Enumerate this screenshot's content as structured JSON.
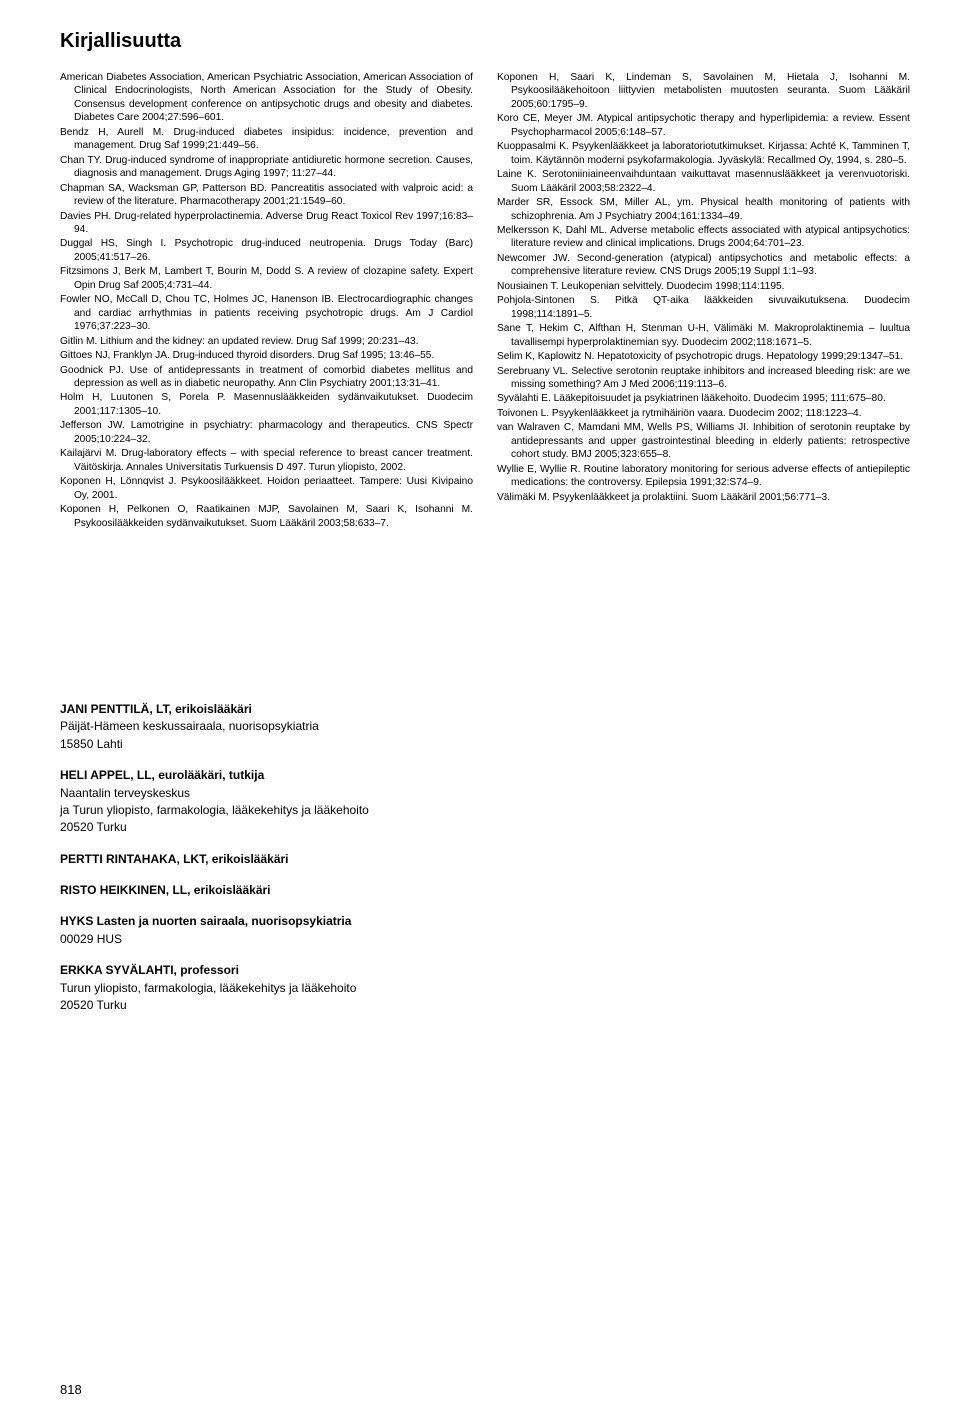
{
  "title": "Kirjallisuutta",
  "refs_left": [
    "American Diabetes Association, American Psychiatric Association, American Association of Clinical Endocrinologists, North American Association for the Study of Obesity. Consensus development conference on antipsychotic drugs and obesity and diabetes. Diabetes Care 2004;27:596–601.",
    "Bendz H, Aurell M. Drug-induced diabetes insipidus: incidence, prevention and management. Drug Saf 1999;21:449–56.",
    "Chan TY. Drug-induced syndrome of inappropriate antidiuretic hormone secretion. Causes, diagnosis and management. Drugs Aging 1997; 11:27–44.",
    "Chapman SA, Wacksman GP, Patterson BD. Pancreatitis associated with valproic acid: a review of the literature. Pharmacotherapy 2001;21:1549–60.",
    "Davies PH. Drug-related hyperprolactinemia. Adverse Drug React Toxicol Rev 1997;16:83–94.",
    "Duggal HS, Singh I. Psychotropic drug-induced neutropenia. Drugs Today (Barc) 2005;41:517–26.",
    "Fitzsimons J, Berk M, Lambert T, Bourin M, Dodd S. A review of clozapine safety. Expert Opin Drug Saf 2005;4:731–44.",
    "Fowler NO, McCall D, Chou TC, Holmes JC, Hanenson IB. Electrocardiographic changes and cardiac arrhythmias in patients receiving psychotropic drugs. Am J Cardiol 1976;37:223–30.",
    "Gitlin M. Lithium and the kidney: an updated review. Drug Saf 1999; 20:231–43.",
    "Gittoes NJ, Franklyn JA. Drug-induced thyroid disorders. Drug Saf 1995; 13:46–55.",
    "Goodnick PJ. Use of antidepressants in treatment of comorbid diabetes mellitus and depression as well as in diabetic neuropathy. Ann Clin Psychiatry 2001;13:31–41.",
    "Holm H, Luutonen S, Porela P. Masennuslääkkeiden sydänvaikutukset. Duodecim 2001;117:1305–10.",
    "Jefferson JW. Lamotrigine in psychiatry: pharmacology and therapeutics. CNS Spectr 2005;10:224–32.",
    "Kailajärvi M. Drug-laboratory effects – with special reference to breast cancer treatment. Väitöskirja. Annales Universitatis Turkuensis D 497. Turun yliopisto, 2002.",
    "Koponen H, Lönnqvist J. Psykoosilääkkeet. Hoidon periaatteet. Tampere: Uusi Kivipaino Oy, 2001.",
    "Koponen H, Pelkonen O, Raatikainen MJP, Savolainen M, Saari K, Isohanni M. Psykoosilääkkeiden sydänvaikutukset. Suom Lääkäril 2003;58:633–7."
  ],
  "refs_right": [
    "Koponen H, Saari K, Lindeman S, Savolainen M, Hietala J, Isohanni M. Psykoosilääkehoitoon liittyvien metabolisten muutosten seuranta. Suom Lääkäril 2005;60:1795–9.",
    "Koro CE, Meyer JM. Atypical antipsychotic therapy and hyperlipidemia: a review. Essent Psychopharmacol 2005;6:148–57.",
    "Kuoppasalmi K. Psyykenlääkkeet ja laboratoriotutkimukset. Kirjassa: Achté K, Tamminen T, toim. Käytännön moderni psykofarmakologia. Jyväskylä: Recallmed Oy, 1994, s. 280–5.",
    "Laine K. Serotoniiniaineenvaihduntaan vaikuttavat masennuslääkkeet ja verenvuotoriski. Suom Lääkäril 2003;58:2322–4.",
    "Marder SR, Essock SM, Miller AL, ym. Physical health monitoring of patients with schizophrenia. Am J Psychiatry 2004;161:1334–49.",
    "Melkersson K, Dahl ML. Adverse metabolic effects associated with atypical antipsychotics: literature review and clinical implications. Drugs 2004;64:701–23.",
    "Newcomer JW. Second-generation (atypical) antipsychotics and metabolic effects: a comprehensive literature review. CNS Drugs 2005;19 Suppl 1:1–93.",
    "Nousiainen T. Leukopenian selvittely. Duodecim 1998;114:1195.",
    "Pohjola-Sintonen S. Pitkä QT-aika lääkkeiden sivuvaikutuksena. Duodecim 1998;114:1891–5.",
    "Sane T, Hekim C, Alfthan H, Stenman U-H, Välimäki M. Makroprolaktinemia – luultua tavallisempi hyperprolaktinemian syy. Duodecim 2002;118:1671–5.",
    "Selim K, Kaplowitz N. Hepatotoxicity of psychotropic drugs. Hepatology 1999;29:1347–51.",
    "Serebruany VL. Selective serotonin reuptake inhibitors and increased bleeding risk: are we missing something? Am J Med 2006;119:113–6.",
    "Syvälahti E. Lääkepitoisuudet ja psykiatrinen lääkehoito. Duodecim 1995; 111:675–80.",
    "Toivonen L. Psyykenlääkkeet ja rytmihäiriön vaara. Duodecim 2002; 118:1223–4.",
    "van Walraven C, Mamdani MM, Wells PS, Williams JI. Inhibition of serotonin reuptake by antidepressants and upper gastrointestinal bleeding in elderly patients: retrospective cohort study. BMJ 2005;323:655–8.",
    "Wyllie E, Wyllie R. Routine laboratory monitoring for serious adverse effects of antiepileptic medications: the controversy. Epilepsia 1991;32:S74–9.",
    "Välimäki M. Psyykenlääkkeet ja prolaktiini. Suom Lääkäril 2001;56:771–3."
  ],
  "authors": [
    {
      "name": "JANI PENTTILÄ, LT, erikoislääkäri",
      "lines": [
        "Päijät-Hämeen keskussairaala, nuorisopsykiatria",
        "15850 Lahti"
      ]
    },
    {
      "name": "HELI APPEL, LL, eurolääkäri, tutkija",
      "lines": [
        "Naantalin terveyskeskus",
        "ja Turun yliopisto, farmakologia, lääkekehitys ja lääkehoito",
        "20520 Turku"
      ]
    },
    {
      "name": "PERTTI RINTAHAKA, LKT, erikoislääkäri",
      "lines": []
    },
    {
      "name": "RISTO HEIKKINEN, LL, erikoislääkäri",
      "lines": []
    },
    {
      "name": "HYKS Lasten ja nuorten sairaala, nuorisopsykiatria",
      "lines": [
        "00029 HUS"
      ]
    },
    {
      "name": "ERKKA SYVÄLAHTI, professori",
      "lines": [
        "Turun yliopisto, farmakologia, lääkekehitys ja lääkehoito",
        "20520 Turku"
      ]
    }
  ],
  "page_number": "818"
}
